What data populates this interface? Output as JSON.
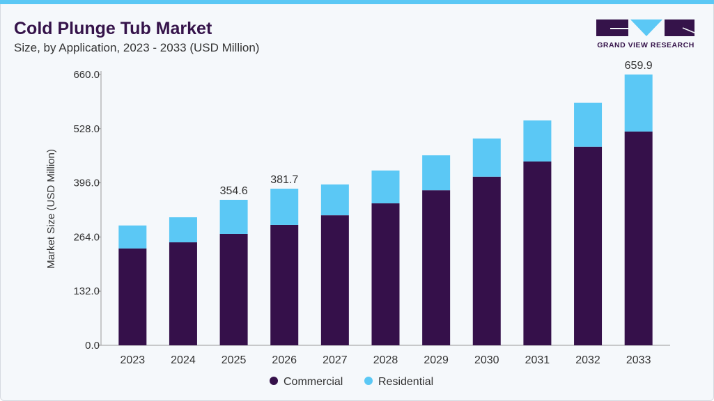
{
  "header": {
    "title": "Cold Plunge Tub Market",
    "subtitle": "Size, by Application, 2023 - 2033 (USD Million)"
  },
  "logo": {
    "text": "GRAND VIEW RESEARCH"
  },
  "colors": {
    "commercial": "#35104a",
    "residential": "#5bc8f5",
    "accent": "#5bc8f5"
  },
  "chart_data": {
    "type": "bar",
    "stacked": true,
    "title": "Cold Plunge Tub Market",
    "subtitle": "Size, by Application, 2023 - 2033 (USD Million)",
    "xlabel": "",
    "ylabel": "Market Size (USD Million)",
    "ylim": [
      0,
      660
    ],
    "yticks": [
      "0.0",
      "132.0",
      "264.0",
      "396.0",
      "528.0",
      "660.0"
    ],
    "grid": false,
    "legend_placement": "bottom",
    "categories": [
      "2023",
      "2024",
      "2025",
      "2026",
      "2027",
      "2028",
      "2029",
      "2030",
      "2031",
      "2032",
      "2033"
    ],
    "series": [
      {
        "name": "Commercial",
        "values": [
          236,
          251,
          271.5,
          293.6,
          317,
          346,
          378,
          411,
          448,
          484,
          521
        ]
      },
      {
        "name": "Residential",
        "values": [
          56,
          61,
          83.1,
          88.1,
          75,
          80,
          85,
          93,
          100,
          107,
          138.9
        ]
      }
    ],
    "data_labels": {
      "2025": "354.6",
      "2026": "381.7",
      "2033": "659.9"
    }
  }
}
